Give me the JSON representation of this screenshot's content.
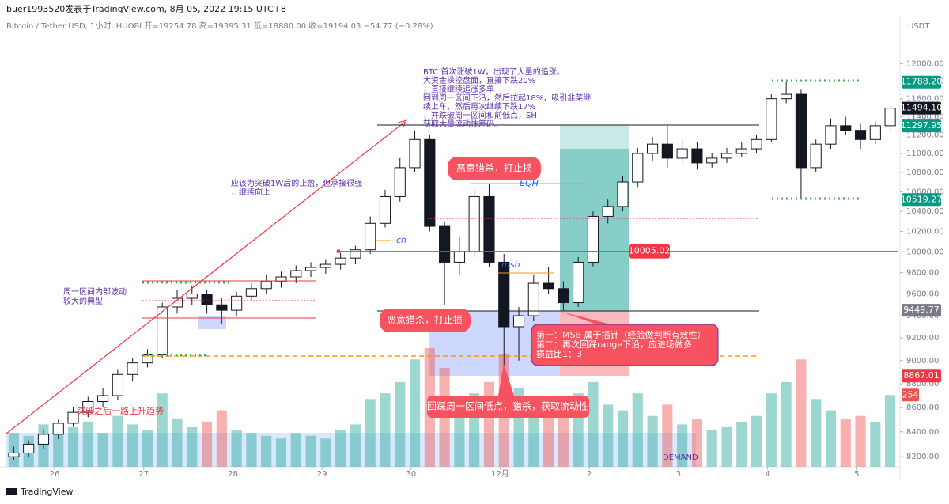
{
  "header": {
    "publisher": "buer1993520发表于TradingView.com,  8月 05, 2022 19:15 UTC+8",
    "symbol": "Bitcoin / Tether USD, 1小时, HUOBI  开=19254.78  高=19395.31  低=18880.00  收=19194.03  −54.77 (−0.28%)",
    "currency": "USDT"
  },
  "chart_data": {
    "type": "candlestick",
    "log_scale": true,
    "up_color": "#26a69a",
    "down_color": "#ef5350",
    "xlim": [
      0,
      240
    ],
    "xticks": [
      {
        "value": 13,
        "label": "26"
      },
      {
        "value": 37,
        "label": "27"
      },
      {
        "value": 61,
        "label": "28"
      },
      {
        "value": 85,
        "label": "29"
      },
      {
        "value": 109,
        "label": "30"
      },
      {
        "value": 133,
        "label": "12月"
      },
      {
        "value": 157,
        "label": "2"
      },
      {
        "value": 181,
        "label": "3"
      },
      {
        "value": 205,
        "label": "4"
      },
      {
        "value": 229,
        "label": "5"
      }
    ],
    "ylim": [
      8120,
      12550
    ],
    "yticks": [
      {
        "value": 8200,
        "label": "8200.00"
      },
      {
        "value": 8400,
        "label": "8400.00"
      },
      {
        "value": 8600,
        "label": "8600.00"
      },
      {
        "value": 8800,
        "label": "8800.00"
      },
      {
        "value": 9000,
        "label": "9000.00"
      },
      {
        "value": 9200,
        "label": "9200.00"
      },
      {
        "value": 9400,
        "label": "9400.00"
      },
      {
        "value": 9600,
        "label": "9600.00"
      },
      {
        "value": 9800,
        "label": "9800.00"
      },
      {
        "value": 10000,
        "label": "10000.00"
      },
      {
        "value": 10200,
        "label": "10200.00"
      },
      {
        "value": 10400,
        "label": "10400.00"
      },
      {
        "value": 10600,
        "label": "10600.00"
      },
      {
        "value": 10800,
        "label": "10800.00"
      },
      {
        "value": 11000,
        "label": "11000.00"
      },
      {
        "value": 11200,
        "label": "11200.00"
      },
      {
        "value": 11400,
        "label": "11400.00"
      },
      {
        "value": 11600,
        "label": "11600.00"
      },
      {
        "value": 11800,
        "label": "11800.00"
      },
      {
        "value": 12000,
        "label": "12000.00"
      }
    ],
    "x": [
      0,
      4,
      8,
      12,
      16,
      20,
      24,
      28,
      32,
      36,
      40,
      44,
      48,
      52,
      56,
      60,
      64,
      68,
      72,
      76,
      80,
      84,
      88,
      92,
      96,
      100,
      104,
      108,
      112,
      116,
      120,
      124,
      128,
      132,
      136,
      140,
      144,
      148,
      152,
      156,
      160,
      164,
      168,
      172,
      176,
      180,
      184,
      188,
      192,
      196,
      200,
      204,
      208,
      212,
      216,
      220,
      224,
      228,
      232,
      236
    ],
    "open": [
      8200,
      8230,
      8300,
      8380,
      8470,
      8560,
      8650,
      8700,
      8880,
      8980,
      9050,
      9480,
      9560,
      9600,
      9500,
      9450,
      9580,
      9650,
      9720,
      9760,
      9820,
      9850,
      9880,
      9940,
      10020,
      10280,
      10550,
      10850,
      11150,
      10250,
      9900,
      10000,
      10550,
      9900,
      9300,
      9400,
      9700,
      9650,
      9520,
      9900,
      10350,
      10450,
      10700,
      11000,
      11100,
      10950,
      11050,
      10900,
      10950,
      11000,
      11050,
      11150,
      11600,
      11650,
      10850,
      11100,
      11300,
      11250,
      11150,
      11300
    ],
    "high": [
      8280,
      8330,
      8420,
      8500,
      8600,
      8690,
      8760,
      8920,
      9020,
      9100,
      9520,
      9640,
      9680,
      9640,
      9560,
      9620,
      9700,
      9780,
      9810,
      9870,
      9900,
      9930,
      9990,
      10060,
      10350,
      10620,
      10950,
      11250,
      11200,
      10300,
      10150,
      10620,
      10680,
      9980,
      9480,
      9780,
      9850,
      9720,
      9950,
      10400,
      10520,
      10760,
      11060,
      11180,
      11300,
      11150,
      11120,
      11000,
      11060,
      11120,
      11200,
      11650,
      11788.2,
      11700,
      11150,
      11380,
      11400,
      11320,
      11350,
      11520
    ],
    "low": [
      8170,
      8200,
      8260,
      8340,
      8440,
      8520,
      8600,
      8660,
      8820,
      8940,
      9020,
      9420,
      9500,
      9420,
      9330,
      9400,
      9540,
      9600,
      9660,
      9700,
      9760,
      9790,
      9830,
      9880,
      9980,
      10240,
      10500,
      10800,
      10200,
      9500,
      9780,
      9950,
      9850,
      8880,
      9000,
      9350,
      9600,
      9449.77,
      9480,
      9860,
      10280,
      10400,
      10650,
      10920,
      10850,
      10900,
      10830,
      10850,
      10900,
      10960,
      11000,
      11120,
      11550,
      10519.27,
      10800,
      11050,
      11200,
      11050,
      11100,
      11250
    ],
    "close": [
      8230,
      8300,
      8380,
      8470,
      8560,
      8650,
      8700,
      8880,
      8980,
      9050,
      9480,
      9560,
      9600,
      9500,
      9450,
      9580,
      9650,
      9720,
      9760,
      9820,
      9850,
      9880,
      9940,
      10020,
      10280,
      10550,
      10850,
      11150,
      10250,
      9900,
      10000,
      10550,
      9900,
      9300,
      9400,
      9700,
      9650,
      9520,
      9900,
      10350,
      10450,
      10700,
      11000,
      11100,
      10950,
      11050,
      10900,
      10950,
      11000,
      11050,
      11150,
      11600,
      11650,
      10850,
      11100,
      11300,
      11250,
      11150,
      11300,
      11494.1
    ],
    "volume": [
      120,
      110,
      150,
      130,
      140,
      160,
      120,
      180,
      150,
      130,
      260,
      170,
      140,
      160,
      200,
      130,
      120,
      110,
      100,
      120,
      110,
      100,
      130,
      150,
      240,
      260,
      300,
      380,
      420,
      350,
      220,
      260,
      300,
      400,
      280,
      220,
      180,
      240,
      260,
      300,
      220,
      200,
      260,
      180,
      220,
      150,
      170,
      130,
      140,
      160,
      180,
      260,
      300,
      380,
      240,
      200,
      170,
      180,
      160,
      254
    ],
    "price_flags": [
      {
        "value": 11788.2,
        "label": "11788.20",
        "color": "#089981"
      },
      {
        "value": 11494.1,
        "label": "11494.10",
        "color": "#131722"
      },
      {
        "value": 11297.95,
        "color": "#089981"
      },
      {
        "value": 10519.27,
        "color": "#089981"
      },
      {
        "value": 9449.77,
        "color": "#787b86"
      },
      {
        "value": 8867.01,
        "color": "#f23645"
      }
    ],
    "level": {
      "value": 10005.02,
      "color": "#f23645"
    }
  },
  "annotations": {
    "main_note": [
      "BTC 首次涨破1W，出现了大量的追涨。",
      "大资金操控盘面，直接下跌20%",
      "，直接继续追涨多单",
      "回到周一区间下沿，然后拉起18%，吸引韭菜继",
      "续上车，然后再次继续下跌17%",
      "，并跌破周一区间和前低点，SH",
      "获取大量流动性筹码。"
    ],
    "breakout_note": [
      "应该为突破1W后的止盈，但承接很强",
      "，继续向上"
    ],
    "range_note": [
      "周一区间内部波动",
      "较大的典型"
    ],
    "trend_note": "突破之后一路上升趋势",
    "hunt_top": "恶意猎杀，打止损",
    "hunt_left": "恶意猎杀，打止损",
    "retest": "回踩周一区间低点，猎杀，获取流动性",
    "setup": [
      "第一：MSB 属于插针（经验做判断有效性）",
      "第二：再次回踩range下沿，应进场做多",
      "损益比1：3"
    ],
    "ch": "ch",
    "eqh": "EQH",
    "msb": "msb",
    "demand": "DEMAND"
  },
  "footer": {
    "brand": "TradingView"
  }
}
